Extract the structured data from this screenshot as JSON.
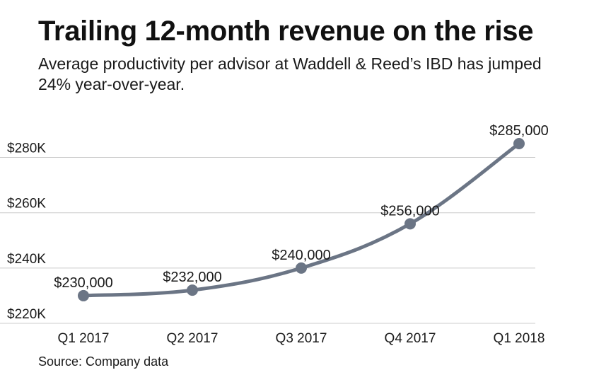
{
  "header": {
    "title": "Trailing 12-month revenue on the rise",
    "subtitle": "Average productivity per advisor at Waddell & Reed’s IBD has jumped 24% year-over-year."
  },
  "footer": {
    "source": "Source: Company data"
  },
  "colors": {
    "line": "#6b7585",
    "grid": "#cccccc",
    "text": "#1a1a1a"
  },
  "chart_data": {
    "type": "line",
    "title": "Trailing 12-month revenue on the rise",
    "subtitle": "Average productivity per advisor at Waddell & Reed’s IBD has jumped 24% year-over-year.",
    "xlabel": "",
    "ylabel": "",
    "categories": [
      "Q1 2017",
      "Q2 2017",
      "Q3 2017",
      "Q4 2017",
      "Q1 2018"
    ],
    "series": [
      {
        "name": "Average productivity per advisor",
        "values": [
          230000,
          232000,
          240000,
          256000,
          285000
        ],
        "labels": [
          "$230,000",
          "$232,000",
          "$240,000",
          "$256,000",
          "$285,000"
        ]
      }
    ],
    "ylim": [
      220000,
      285000
    ],
    "yticks": [
      220000,
      240000,
      260000,
      280000
    ],
    "ytick_labels": [
      "$220K",
      "$240K",
      "$260K",
      "$280K"
    ],
    "grid": true,
    "legend": "none"
  }
}
